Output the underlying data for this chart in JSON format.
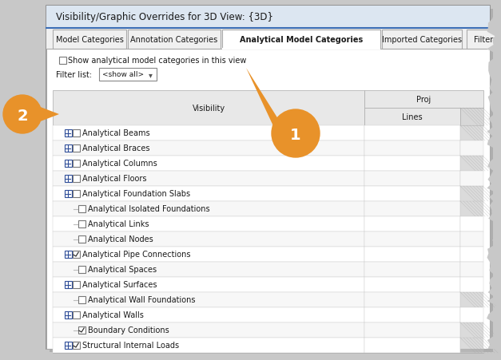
{
  "title": "Visibility/Graphic Overrides for 3D View: {3D}",
  "tabs": [
    "Model Categories",
    "Annotation Categories",
    "Analytical Model Categories",
    "Imported Categories",
    "Filters"
  ],
  "active_tab_idx": 2,
  "checkbox_label": "Show analytical model categories in this view",
  "filter_label": "Filter list:",
  "filter_value": "<show all>",
  "col_visibility": "Visibility",
  "col_proj": "Proj",
  "col_lines": "Lines",
  "rows": [
    {
      "indent": 1,
      "plus": true,
      "checked": false,
      "label": "Analytical Beams",
      "gray_right": true
    },
    {
      "indent": 1,
      "plus": true,
      "checked": false,
      "label": "Analytical Braces",
      "gray_right": false
    },
    {
      "indent": 1,
      "plus": true,
      "checked": false,
      "label": "Analytical Columns",
      "gray_right": true
    },
    {
      "indent": 1,
      "plus": true,
      "checked": false,
      "label": "Analytical Floors",
      "gray_right": false
    },
    {
      "indent": 1,
      "plus": true,
      "checked": false,
      "label": "Analytical Foundation Slabs",
      "gray_right": true
    },
    {
      "indent": 2,
      "plus": false,
      "checked": false,
      "label": "Analytical Isolated Foundations",
      "gray_right": true
    },
    {
      "indent": 2,
      "plus": false,
      "checked": false,
      "label": "Analytical Links",
      "gray_right": false
    },
    {
      "indent": 2,
      "plus": false,
      "checked": false,
      "label": "Analytical Nodes",
      "gray_right": false
    },
    {
      "indent": 1,
      "plus": true,
      "checked": true,
      "label": "Analytical Pipe Connections",
      "gray_right": false
    },
    {
      "indent": 2,
      "plus": false,
      "checked": false,
      "label": "Analytical Spaces",
      "gray_right": false
    },
    {
      "indent": 1,
      "plus": true,
      "checked": false,
      "label": "Analytical Surfaces",
      "gray_right": false
    },
    {
      "indent": 2,
      "plus": false,
      "checked": false,
      "label": "Analytical Wall Foundations",
      "gray_right": true
    },
    {
      "indent": 1,
      "plus": true,
      "checked": false,
      "label": "Analytical Walls",
      "gray_right": false
    },
    {
      "indent": 2,
      "plus": false,
      "checked": true,
      "label": "Boundary Conditions",
      "gray_right": true
    },
    {
      "indent": 1,
      "plus": true,
      "checked": true,
      "label": "Structural Internal Loads",
      "gray_right": true
    }
  ],
  "orange_color": "#E8922A",
  "blue_color": "#2E4D99",
  "dialog_bg": "#F0F0F0",
  "white": "#FFFFFF",
  "header_bg": "#E8E8E8",
  "border_dark": "#999999",
  "border_light": "#CCCCCC",
  "gray_cell": "#BEBEBE",
  "text_dark": "#1A1A1A",
  "title_blue": "#1F4E79",
  "font_size_title": 8.5,
  "font_size_tab": 7.0,
  "font_size_row": 7.0,
  "font_size_ann": 14
}
